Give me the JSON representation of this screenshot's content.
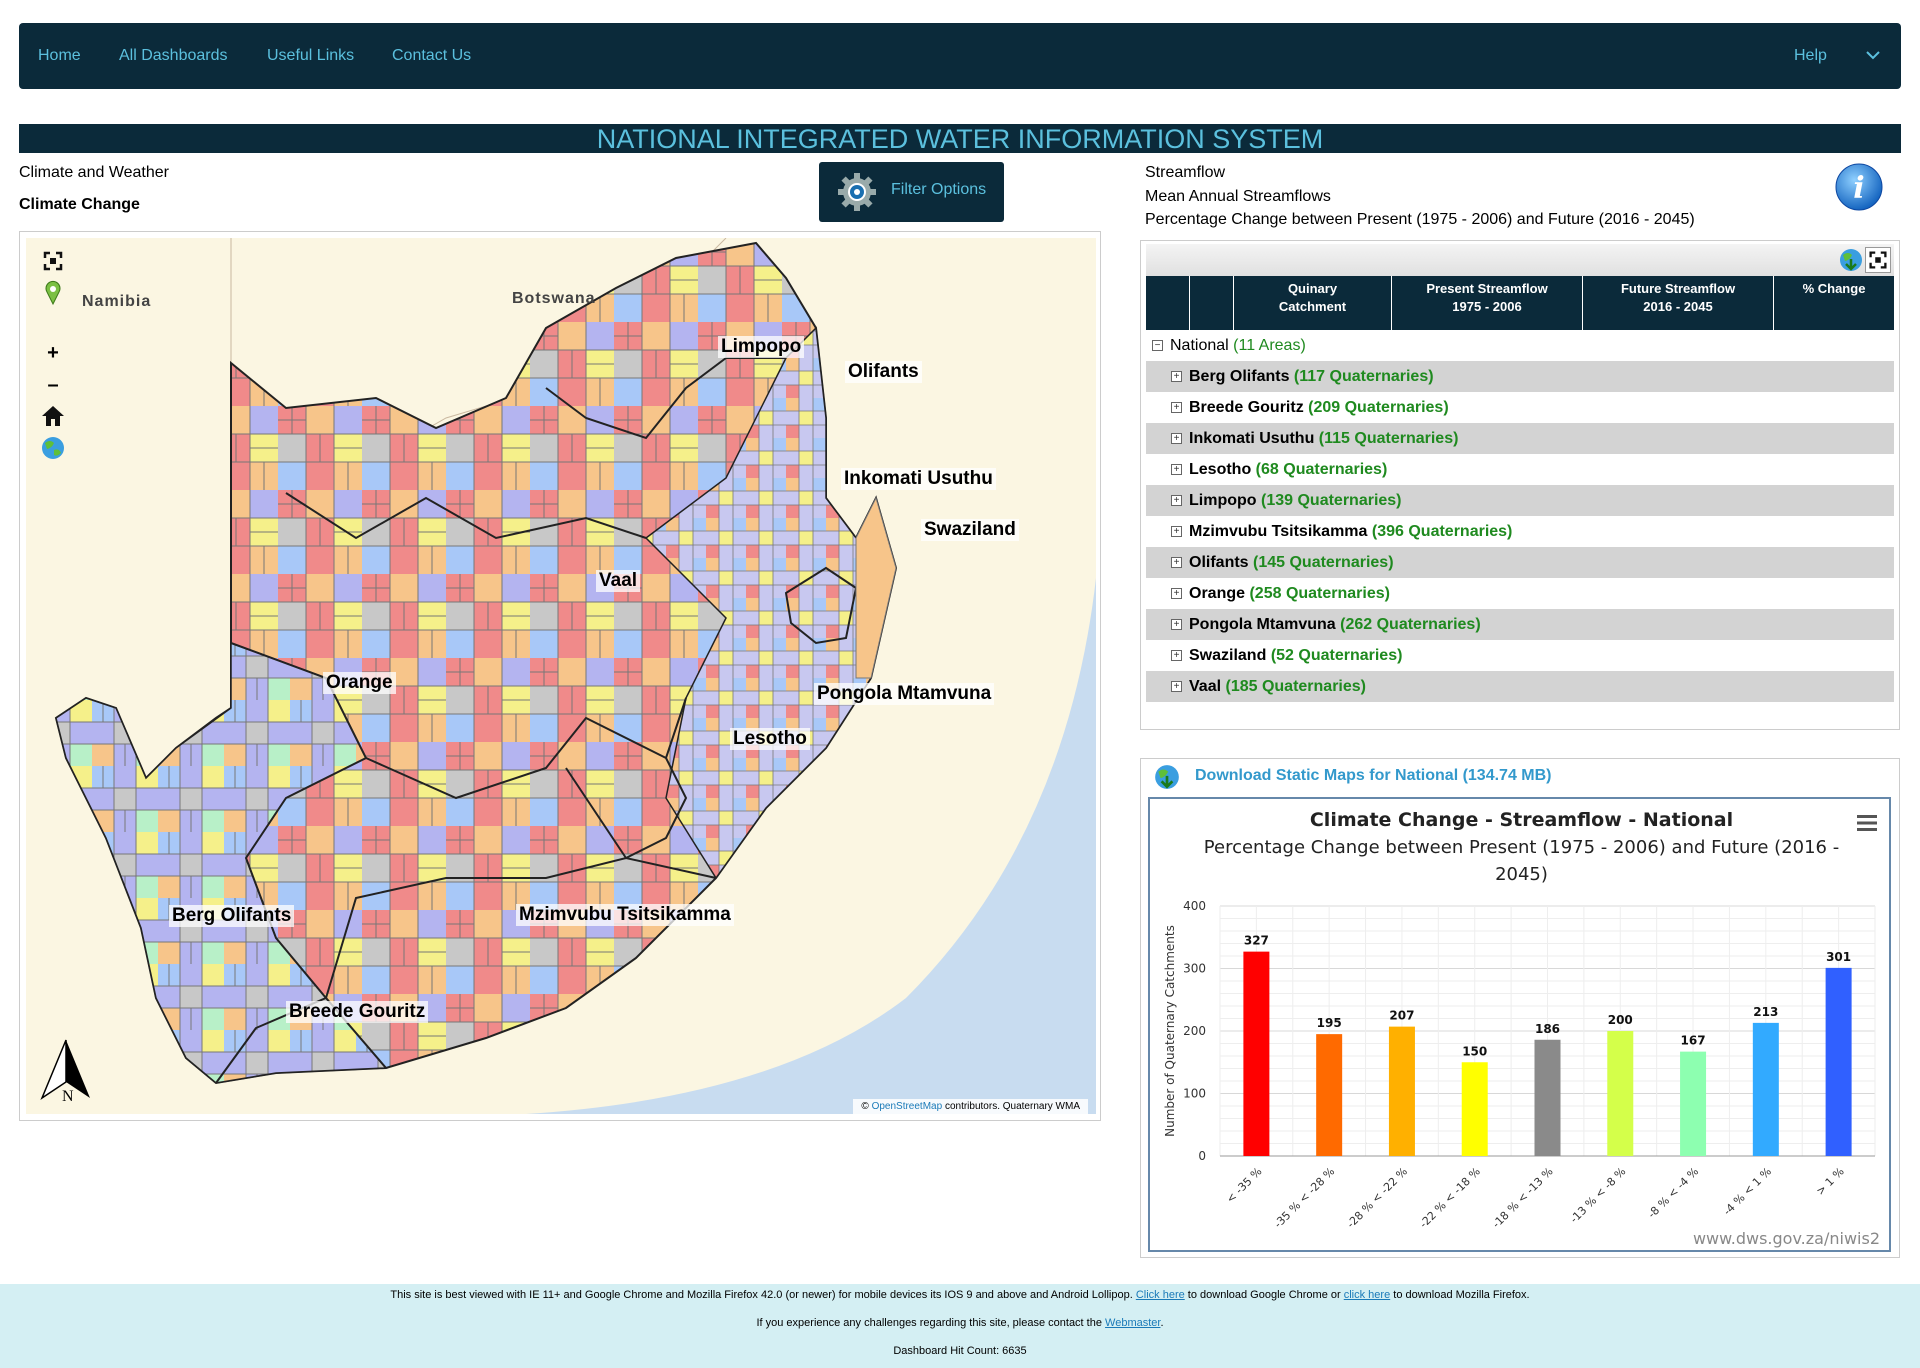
{
  "nav": {
    "home": "Home",
    "all_dashboards": "All Dashboards",
    "useful_links": "Useful Links",
    "contact_us": "Contact Us",
    "help": "Help"
  },
  "banner": "NATIONAL INTEGRATED WATER INFORMATION SYSTEM",
  "left": {
    "category": "Climate and Weather",
    "subcategory": "Climate Change",
    "filter_label": "Filter Options"
  },
  "right": {
    "l1": "Streamflow",
    "l2": "Mean Annual Streamflows",
    "l3": "Percentage Change between Present (1975 - 2006) and Future (2016 - 2045)"
  },
  "map": {
    "countries": {
      "namibia": "Namibia",
      "botswana": "Botswana"
    },
    "labels": {
      "limpopo": "Limpopo",
      "olifants": "Olifants",
      "inkomati": "Inkomati Usuthu",
      "swaziland": "Swaziland",
      "vaal": "Vaal",
      "orange": "Orange",
      "pongola": "Pongola Mtamvuna",
      "lesotho": "Lesotho",
      "berg": "Berg Olifants",
      "mzimvubu": "Mzimvubu Tsitsikamma",
      "breede": "Breede Gouritz"
    },
    "attribution": {
      "prefix": "©",
      "link": "OpenStreetMap",
      "suffix": "contributors. Quaternary WMA"
    },
    "north": "N"
  },
  "table": {
    "headers": [
      "Quinary Catchment",
      "Present Streamflow 1975 - 2006",
      "Future Streamflow 2016 - 2045",
      "% Change"
    ],
    "header_lines": {
      "h1a": "Quinary",
      "h1b": "Catchment",
      "h2a": "Present Streamflow",
      "h2b": "1975 - 2006",
      "h3a": "Future Streamflow",
      "h3b": "2016 - 2045",
      "h4": "% Change"
    },
    "root": {
      "name": "National",
      "count": "(11 Areas)"
    },
    "rows": [
      {
        "name": "Berg Olifants",
        "count": "(117 Quaternaries)"
      },
      {
        "name": "Breede Gouritz",
        "count": "(209 Quaternaries)"
      },
      {
        "name": "Inkomati Usuthu",
        "count": "(115 Quaternaries)"
      },
      {
        "name": "Lesotho",
        "count": "(68 Quaternaries)"
      },
      {
        "name": "Limpopo",
        "count": "(139 Quaternaries)"
      },
      {
        "name": "Mzimvubu Tsitsikamma",
        "count": "(396 Quaternaries)"
      },
      {
        "name": "Olifants",
        "count": "(145 Quaternaries)"
      },
      {
        "name": "Orange",
        "count": "(258 Quaternaries)"
      },
      {
        "name": "Pongola Mtamvuna",
        "count": "(262 Quaternaries)"
      },
      {
        "name": "Swaziland",
        "count": "(52 Quaternaries)"
      },
      {
        "name": "Vaal",
        "count": "(185 Quaternaries)"
      }
    ]
  },
  "download_label": "Download Static Maps for National (134.74 MB)",
  "chart_data": {
    "type": "bar",
    "title": "Climate Change - Streamflow - National",
    "subtitle_a": "Percentage Change between Present (1975 - 2006) and Future (2016 -",
    "subtitle_b": "2045)",
    "ylabel": "Number of Quaternary Catchments",
    "xlabel": "",
    "ylim": [
      0,
      400
    ],
    "yticks": [
      "0",
      "100",
      "200",
      "300",
      "400"
    ],
    "categories": [
      "< -35 %",
      "-35 % < -28 %",
      "-28 % < -22 %",
      "-22 % < -18 %",
      "-18 % < -13 %",
      "-13 % < -8 %",
      "-8 % < -4 %",
      "-4 % < 1 %",
      "> 1 %"
    ],
    "values": [
      327,
      195,
      207,
      150,
      186,
      200,
      167,
      213,
      301
    ],
    "colors": [
      "#ff0000",
      "#ff6a00",
      "#ffb000",
      "#ffff00",
      "#8a8a8a",
      "#d4ff4a",
      "#8dffb0",
      "#32aaff",
      "#3060ff"
    ],
    "credit": "www.dws.gov.za/niwis2",
    "grid": true,
    "legend": "none"
  },
  "footer": {
    "l1_a": "This site is best viewed with IE 11+ and Google Chrome and Mozilla Firefox 42.0 (or newer) for mobile devices its IOS 9 and above and Android Lollipop.",
    "l1_link1": "Click here",
    "l1_b": "to download Google Chrome or",
    "l1_link2": "click here",
    "l1_c": "to download Mozilla Firefox.",
    "l2_a": "If you experience any challenges regarding this site, please contact the",
    "l2_link": "Webmaster",
    "l2_b": ".",
    "l3": "Dashboard Hit Count: 6635"
  },
  "icons": {
    "gear": "gear-icon",
    "info": "info-icon",
    "globe": "globe-download-icon",
    "fullscreen": "fullscreen-icon",
    "pin": "location-pin-icon",
    "home": "home-icon",
    "chevron": "chevron-down-icon",
    "menu": "hamburger-menu-icon",
    "north": "north-arrow-icon"
  }
}
